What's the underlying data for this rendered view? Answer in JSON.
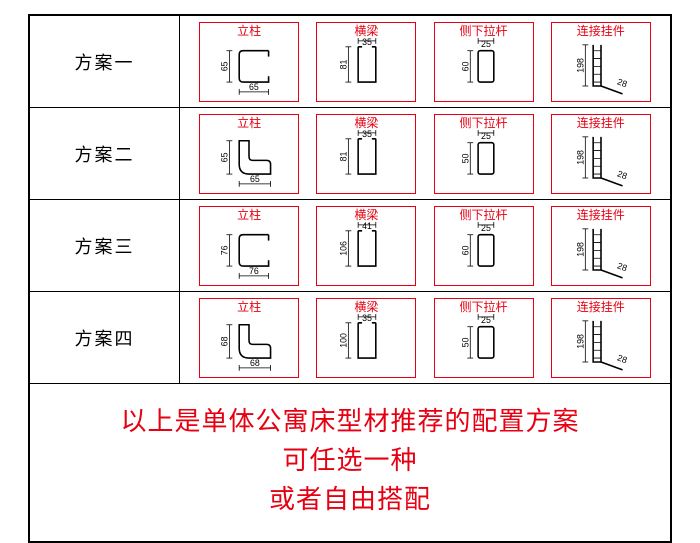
{
  "table": {
    "border_color": "#000000",
    "accent_color": "#e60012",
    "dim_color": "#000000",
    "bg": "#ffffff",
    "column_headers": [
      "立柱",
      "横梁",
      "侧下拉杆",
      "连接挂件"
    ],
    "rows": [
      {
        "label": "方案一",
        "parts": [
          {
            "title": "立柱",
            "profile": "c-open",
            "dim_w": "65",
            "dim_h": "65"
          },
          {
            "title": "横梁",
            "profile": "u-up",
            "dim_w": "35",
            "dim_h": "81"
          },
          {
            "title": "侧下拉杆",
            "profile": "rect",
            "dim_w": "25",
            "dim_h": "60"
          },
          {
            "title": "连接挂件",
            "profile": "bracket",
            "dim_w": "",
            "dim_h": "198",
            "dim_ext": "28"
          }
        ]
      },
      {
        "label": "方案二",
        "parts": [
          {
            "title": "立柱",
            "profile": "l-elbow",
            "dim_w": "65",
            "dim_h": "65"
          },
          {
            "title": "横梁",
            "profile": "u-up",
            "dim_w": "35",
            "dim_h": "81"
          },
          {
            "title": "侧下拉杆",
            "profile": "rect",
            "dim_w": "25",
            "dim_h": "50"
          },
          {
            "title": "连接挂件",
            "profile": "bracket",
            "dim_w": "",
            "dim_h": "198",
            "dim_ext": "28"
          }
        ]
      },
      {
        "label": "方案三",
        "parts": [
          {
            "title": "立柱",
            "profile": "c-open",
            "dim_w": "76",
            "dim_h": "76"
          },
          {
            "title": "横梁",
            "profile": "u-up",
            "dim_w": "41",
            "dim_h": "106"
          },
          {
            "title": "侧下拉杆",
            "profile": "rect",
            "dim_w": "25",
            "dim_h": "60"
          },
          {
            "title": "连接挂件",
            "profile": "bracket",
            "dim_w": "",
            "dim_h": "198",
            "dim_ext": "28"
          }
        ]
      },
      {
        "label": "方案四",
        "parts": [
          {
            "title": "立柱",
            "profile": "l-elbow",
            "dim_w": "68",
            "dim_h": "68"
          },
          {
            "title": "横梁",
            "profile": "u-up",
            "dim_w": "35",
            "dim_h": "100"
          },
          {
            "title": "侧下拉杆",
            "profile": "rect",
            "dim_w": "25",
            "dim_h": "50"
          },
          {
            "title": "连接挂件",
            "profile": "bracket",
            "dim_w": "",
            "dim_h": "198",
            "dim_ext": "28"
          }
        ]
      }
    ]
  },
  "footer": {
    "line1": "以上是单体公寓床型材推荐的配置方案",
    "line2": "可任选一种",
    "line3": "或者自由搭配",
    "color": "#e60012",
    "fontsize": 26
  }
}
